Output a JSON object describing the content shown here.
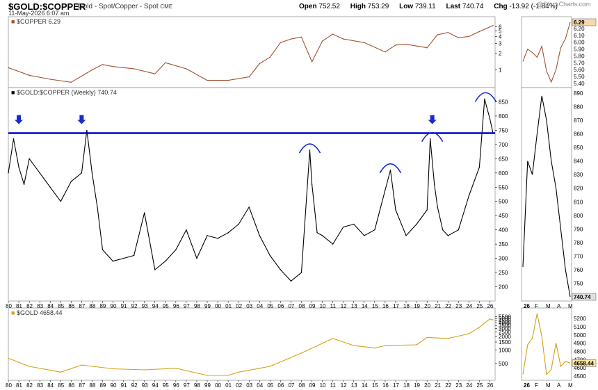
{
  "header": {
    "symbol": "$GOLD:$COPPER",
    "description": "Gold - Spot/Copper - Spot",
    "exchange": "CME",
    "date": "11-May-2026 6:07 am",
    "open_label": "Open",
    "open": "752.52",
    "high_label": "High",
    "high": "753.29",
    "low_label": "Low",
    "low": "739.11",
    "last_label": "Last",
    "last": "740.74",
    "chg_label": "Chg",
    "chg": "-13.92 (-1.84%)",
    "brand": "@StockCharts.com"
  },
  "colors": {
    "copper": "#a0522d",
    "ratio": "#000000",
    "gold": "#d4a017",
    "resistance": "#0000cc",
    "arrow": "#1a2acc",
    "chg": "#cc0000"
  },
  "chart_data": [
    {
      "type": "line",
      "name": "copper-panel",
      "legend": "$COPPER 6.29",
      "scale": "log",
      "y_ticks": [
        "6",
        "5",
        "4",
        "3",
        "2",
        "1"
      ],
      "inset_ticks": [
        "6.20",
        "6.10",
        "6.00",
        "5.90",
        "5.80",
        "5.70",
        "5.60",
        "5.50",
        "5.40"
      ],
      "last_badge": "6.29",
      "x": [
        1980,
        1982,
        1984,
        1986,
        1988,
        1989,
        1990,
        1992,
        1994,
        1995,
        1997,
        1999,
        2001,
        2003,
        2004,
        2005,
        2006,
        2007,
        2008,
        2009,
        2010,
        2011,
        2012,
        2014,
        2016,
        2017,
        2018,
        2020,
        2021,
        2022,
        2023,
        2024,
        2025,
        2026.3
      ],
      "values": [
        1.1,
        0.8,
        0.68,
        0.6,
        1.0,
        1.25,
        1.15,
        1.05,
        0.85,
        1.35,
        1.05,
        0.65,
        0.65,
        0.75,
        1.3,
        1.7,
        3.1,
        3.6,
        3.9,
        1.4,
        3.3,
        4.4,
        3.6,
        3.1,
        2.1,
        2.8,
        2.9,
        2.5,
        4.3,
        4.7,
        3.8,
        4.0,
        4.9,
        6.29
      ],
      "inset_values": [
        5.72,
        5.9,
        5.85,
        5.78,
        5.94,
        5.58,
        5.42,
        5.6,
        5.92,
        6.05,
        6.29
      ]
    },
    {
      "type": "line",
      "name": "ratio-panel",
      "legend": "$GOLD:$COPPER (Weekly) 740.74",
      "y_ticks": [
        "850",
        "800",
        "750",
        "700",
        "650",
        "600",
        "550",
        "500",
        "450",
        "400",
        "350",
        "300",
        "250",
        "200"
      ],
      "ylim": [
        150,
        900
      ],
      "resistance_level": 740,
      "inset_ticks": [
        "890",
        "880",
        "870",
        "860",
        "850",
        "840",
        "830",
        "820",
        "810",
        "800",
        "790",
        "780",
        "770",
        "760",
        "750"
      ],
      "last_badge": "740.74",
      "x": [
        1980,
        1980.5,
        1981,
        1981.5,
        1982,
        1983,
        1984,
        1985,
        1986,
        1987,
        1987.5,
        1988,
        1988.5,
        1989,
        1990,
        1991,
        1992,
        1993,
        1994,
        1995,
        1996,
        1997,
        1998,
        1999,
        2000,
        2001,
        2002,
        2003,
        2004,
        2005,
        2006,
        2007,
        2008,
        2008.8,
        2009,
        2009.5,
        2010,
        2011,
        2012,
        2013,
        2014,
        2015,
        2016,
        2016.5,
        2017,
        2018,
        2019,
        2020,
        2020.3,
        2020.7,
        2021,
        2021.5,
        2022,
        2023,
        2024,
        2025,
        2025.5,
        2026,
        2026.3
      ],
      "values": [
        600,
        720,
        620,
        560,
        650,
        600,
        550,
        500,
        570,
        600,
        750,
        600,
        480,
        330,
        290,
        300,
        310,
        460,
        260,
        290,
        330,
        400,
        300,
        380,
        370,
        390,
        420,
        480,
        380,
        310,
        260,
        220,
        250,
        680,
        560,
        390,
        380,
        350,
        410,
        420,
        380,
        400,
        540,
        610,
        470,
        380,
        420,
        470,
        720,
        560,
        480,
        400,
        380,
        400,
        520,
        620,
        860,
        790,
        740.74
      ],
      "inset_values": [
        762,
        840,
        830,
        860,
        888,
        870,
        840,
        820,
        790,
        760,
        740
      ]
    },
    {
      "type": "line",
      "name": "gold-panel",
      "legend": "$GOLD 4658.44",
      "scale": "log",
      "y_ticks": [
        "5500",
        "5000",
        "4500",
        "4000",
        "3500",
        "3000",
        "2500",
        "2000",
        "1500",
        "1000",
        "500"
      ],
      "inset_ticks": [
        "5200",
        "5100",
        "5000",
        "4900",
        "4800",
        "4700",
        "4600",
        "4500"
      ],
      "last_badge": "4658.44",
      "x": [
        1980,
        1982,
        1985,
        1987,
        1990,
        1993,
        1996,
        1999,
        2001,
        2002,
        2005,
        2008,
        2011,
        2013,
        2015,
        2016,
        2019,
        2020,
        2022,
        2024,
        2025,
        2026,
        2026.3
      ],
      "values": [
        650,
        430,
        320,
        460,
        380,
        360,
        390,
        270,
        270,
        320,
        430,
        850,
        1800,
        1250,
        1100,
        1250,
        1300,
        1900,
        1800,
        2300,
        3200,
        4900,
        4658.44
      ],
      "inset_values": [
        4520,
        4880,
        4960,
        5260,
        4980,
        4520,
        4580,
        4900,
        4620,
        4680,
        4658
      ]
    }
  ],
  "x_axis": {
    "labels": [
      "80",
      "81",
      "82",
      "83",
      "84",
      "85",
      "86",
      "87",
      "88",
      "89",
      "90",
      "91",
      "92",
      "93",
      "94",
      "95",
      "96",
      "97",
      "98",
      "99",
      "00",
      "01",
      "02",
      "03",
      "04",
      "05",
      "06",
      "07",
      "08",
      "09",
      "10",
      "11",
      "12",
      "13",
      "14",
      "15",
      "16",
      "17",
      "18",
      "19",
      "20",
      "21",
      "22",
      "23",
      "24",
      "25",
      "26"
    ],
    "inset_labels": [
      "26",
      "F",
      "M",
      "A",
      "M"
    ]
  },
  "annotations": {
    "arrows": [
      1981,
      1987,
      2020.5
    ],
    "arcs": [
      2008.8,
      2016.5,
      2020.5,
      2025.6
    ]
  }
}
